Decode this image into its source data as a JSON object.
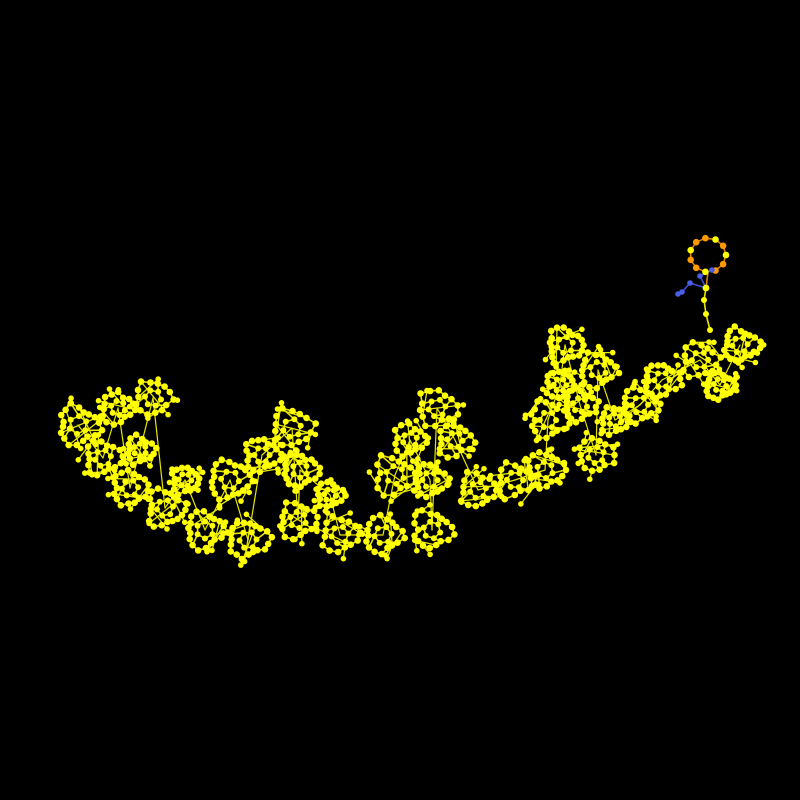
{
  "scene": {
    "background_color": "#000000",
    "render_style": "ball-and-stick",
    "colors": {
      "primary_atom": "#ffff00",
      "primary_bond": "#e6e600",
      "highlight_atom": "#ff9900",
      "highlight_bond": "#d98200",
      "tail_atom": "#4a5ee8",
      "tail_bond": "#3c50d0"
    },
    "icons": [
      "yellow-ring-cluster",
      "orange-ring",
      "blue-chain-tip"
    ]
  }
}
